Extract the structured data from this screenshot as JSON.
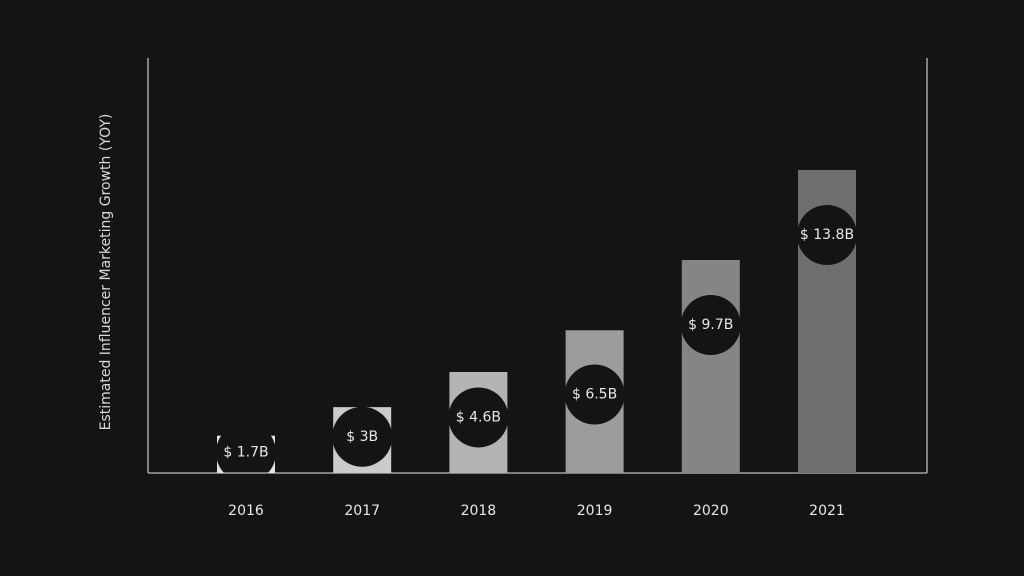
{
  "chart_data": {
    "type": "bar",
    "title": "",
    "xlabel": "",
    "ylabel": "Estimated Influencer Marketing Growth (YOY)",
    "categories": [
      "2016",
      "2017",
      "2018",
      "2019",
      "2020",
      "2021"
    ],
    "values": [
      1.7,
      3.0,
      4.6,
      6.5,
      9.7,
      13.8
    ],
    "data_labels": [
      "$ 1.7B",
      "$ 3B",
      "$ 4.6B",
      "$ 6.5B",
      "$ 9.7B",
      "$ 13.8B"
    ],
    "ylim": [
      0,
      18.9
    ],
    "grid": false,
    "legend": "none",
    "colors": {
      "background": "#141414",
      "axis": "#bdbdbd",
      "label_text": "#e8e8e8",
      "bars": [
        "#e2e2e2",
        "#cbcbcb",
        "#b4b4b4",
        "#9c9c9c",
        "#858585",
        "#6e6e6e"
      ]
    }
  }
}
